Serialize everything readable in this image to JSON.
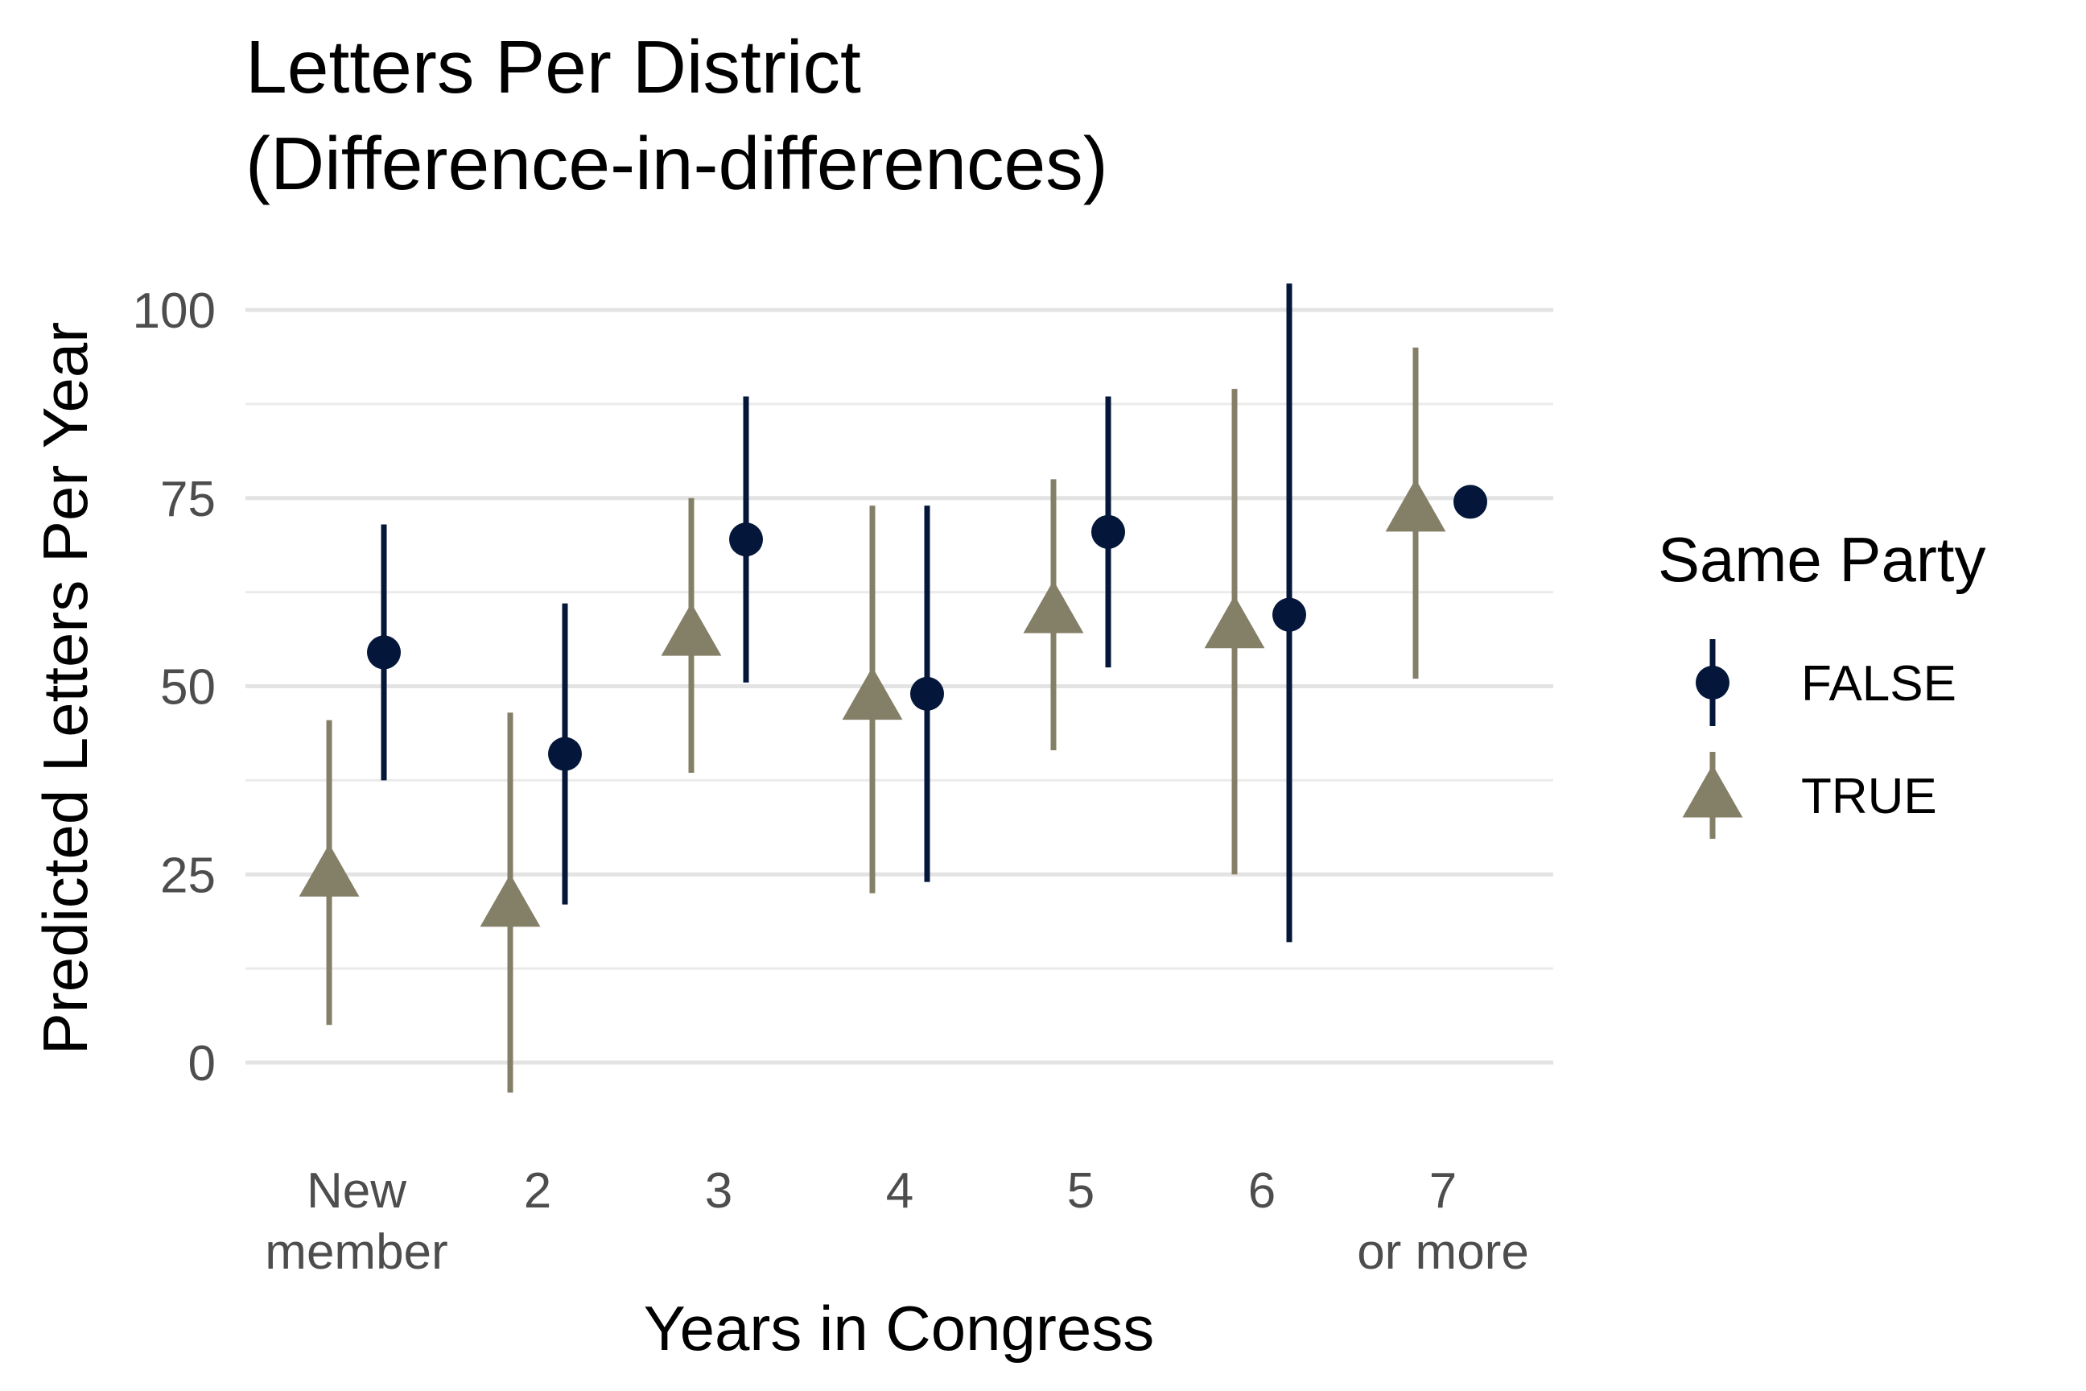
{
  "chart_data": {
    "type": "scatter",
    "title_lines": [
      "Letters Per District",
      "(Difference-in-differences)"
    ],
    "xlabel": "Years in Congress",
    "ylabel": "Predicted Letters Per Year",
    "categories": [
      [
        "New",
        "member"
      ],
      [
        "2"
      ],
      [
        "3"
      ],
      [
        "4"
      ],
      [
        "5"
      ],
      [
        "6"
      ],
      [
        "7",
        "or more"
      ]
    ],
    "ylim": [
      -10,
      105
    ],
    "yticks": [
      0,
      25,
      50,
      75,
      100
    ],
    "y_minor_ticks": [
      12.5,
      37.5,
      62.5,
      87.5
    ],
    "grid": true,
    "legend": {
      "title": "Same Party",
      "position": "right"
    },
    "series": [
      {
        "name": "FALSE",
        "shape": "circle",
        "color": "#04173a",
        "points": [
          {
            "category_index": 0,
            "y": 54.5,
            "lower": 37.5,
            "upper": 71.5
          },
          {
            "category_index": 1,
            "y": 41,
            "lower": 21,
            "upper": 61
          },
          {
            "category_index": 2,
            "y": 69.5,
            "lower": 50.5,
            "upper": 88.5
          },
          {
            "category_index": 3,
            "y": 49,
            "lower": 24,
            "upper": 74
          },
          {
            "category_index": 4,
            "y": 70.5,
            "lower": 52.5,
            "upper": 88.5
          },
          {
            "category_index": 5,
            "y": 59.5,
            "lower": 16,
            "upper": 103.5
          },
          {
            "category_index": 6,
            "y": 74.5,
            "lower": 74.5,
            "upper": 74.5
          }
        ]
      },
      {
        "name": "TRUE",
        "shape": "triangle",
        "color": "#847f67",
        "points": [
          {
            "category_index": 0,
            "y": 25,
            "lower": 5,
            "upper": 45.5
          },
          {
            "category_index": 1,
            "y": 21,
            "lower": -4,
            "upper": 46.5
          },
          {
            "category_index": 2,
            "y": 57,
            "lower": 38.5,
            "upper": 75
          },
          {
            "category_index": 3,
            "y": 48.5,
            "lower": 22.5,
            "upper": 74
          },
          {
            "category_index": 4,
            "y": 60,
            "lower": 41.5,
            "upper": 77.5
          },
          {
            "category_index": 5,
            "y": 58,
            "lower": 25,
            "upper": 89.5
          },
          {
            "category_index": 6,
            "y": 73.5,
            "lower": 51,
            "upper": 95
          }
        ]
      }
    ]
  }
}
